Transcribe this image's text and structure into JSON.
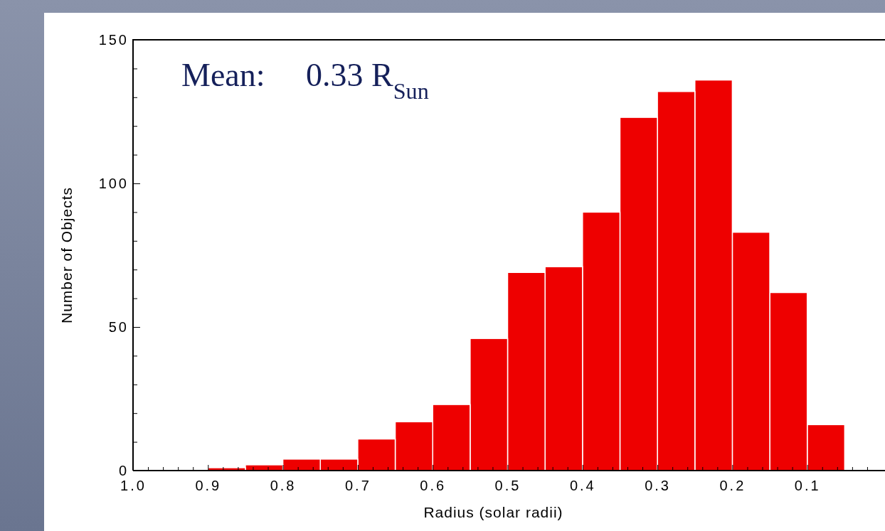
{
  "chart_data": {
    "type": "histogram",
    "xlabel": "Radius (solar radii)",
    "ylabel": "Number of Objects",
    "annotations": [
      "Mean:     0.33 R$_{Sun}$"
    ],
    "bins": [
      0.05,
      0.1,
      0.15,
      0.2,
      0.25,
      0.3,
      0.35,
      0.4,
      0.45,
      0.5,
      0.55,
      0.6,
      0.65,
      0.7,
      0.75,
      0.8,
      0.85,
      0.9
    ],
    "values": [
      16,
      62,
      83,
      136,
      132,
      123,
      90,
      71,
      69,
      46,
      23,
      17,
      11,
      4,
      4,
      2,
      1
    ],
    "color": "#ee0000",
    "xlim": [
      1.0,
      0.0
    ],
    "xticks": [
      {
        "value": 1.0,
        "label": "1.0"
      },
      {
        "value": 0.9,
        "label": "0.9"
      },
      {
        "value": 0.8,
        "label": "0.8"
      },
      {
        "value": 0.7,
        "label": "0.7"
      },
      {
        "value": 0.6,
        "label": "0.6"
      },
      {
        "value": 0.5,
        "label": "0.5"
      },
      {
        "value": 0.4,
        "label": "0.4"
      },
      {
        "value": 0.3,
        "label": "0.3"
      },
      {
        "value": 0.2,
        "label": "0.2"
      },
      {
        "value": 0.1,
        "label": "0.1"
      },
      {
        "value": 0.02,
        "label": null
      },
      {
        "value": 0.04,
        "label": null
      },
      {
        "value": 0.06,
        "label": null
      },
      {
        "value": 0.08,
        "label": null
      },
      {
        "value": 0.12,
        "label": null
      },
      {
        "value": 0.14,
        "label": null
      },
      {
        "value": 0.16,
        "label": null
      },
      {
        "value": 0.18,
        "label": null
      },
      {
        "value": 0.22,
        "label": null
      },
      {
        "value": 0.24,
        "label": null
      },
      {
        "value": 0.26,
        "label": null
      },
      {
        "value": 0.28,
        "label": null
      },
      {
        "value": 0.32,
        "label": null
      },
      {
        "value": 0.34,
        "label": null
      },
      {
        "value": 0.36,
        "label": null
      },
      {
        "value": 0.38,
        "label": null
      },
      {
        "value": 0.42,
        "label": null
      },
      {
        "value": 0.44,
        "label": null
      },
      {
        "value": 0.46,
        "label": null
      },
      {
        "value": 0.48,
        "label": null
      },
      {
        "value": 0.52,
        "label": null
      },
      {
        "value": 0.54,
        "label": null
      },
      {
        "value": 0.56,
        "label": null
      },
      {
        "value": 0.58,
        "label": null
      },
      {
        "value": 0.62,
        "label": null
      },
      {
        "value": 0.64,
        "label": null
      },
      {
        "value": 0.66,
        "label": null
      },
      {
        "value": 0.68,
        "label": null
      },
      {
        "value": 0.72,
        "label": null
      },
      {
        "value": 0.74,
        "label": null
      },
      {
        "value": 0.76,
        "label": null
      },
      {
        "value": 0.78,
        "label": null
      },
      {
        "value": 0.82,
        "label": null
      },
      {
        "value": 0.84,
        "label": null
      },
      {
        "value": 0.86,
        "label": null
      },
      {
        "value": 0.88,
        "label": null
      },
      {
        "value": 0.92,
        "label": null
      },
      {
        "value": 0.94,
        "label": null
      },
      {
        "value": 0.96,
        "label": null
      },
      {
        "value": 0.98,
        "label": null
      }
    ],
    "ylim": [
      0,
      150
    ],
    "yticks": [
      0,
      {
        "value": 10,
        "label": null
      },
      {
        "value": 20,
        "label": null
      },
      {
        "value": 30,
        "label": null
      },
      {
        "value": 40,
        "label": null
      },
      50,
      {
        "value": 60,
        "label": null
      },
      {
        "value": 70,
        "label": null
      },
      {
        "value": 80,
        "label": null
      },
      {
        "value": 90,
        "label": null
      },
      100,
      {
        "value": 110,
        "label": null
      },
      {
        "value": 120,
        "label": null
      },
      {
        "value": 130,
        "label": null
      },
      {
        "value": 140,
        "label": null
      },
      150
    ],
    "grid": false
  }
}
